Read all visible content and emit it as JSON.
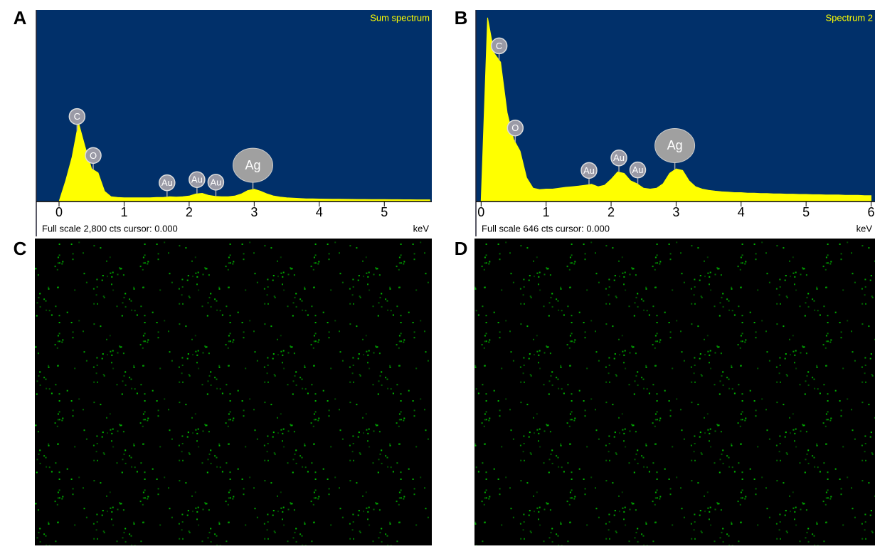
{
  "chart_data": [
    {
      "type": "area",
      "panel_label": "A",
      "subtitle": "Sum spectrum",
      "footer": "Full scale 2,800 cts cursor: 0.000",
      "x_label": "keV",
      "color": "#ffff00",
      "background_color": "#01306a",
      "xlim": [
        -0.35,
        5.73
      ],
      "ylim": [
        0,
        2800
      ],
      "xticks": [
        0,
        1,
        2,
        3,
        4,
        5
      ],
      "x": [
        0,
        0.1,
        0.2,
        0.3,
        0.4,
        0.5,
        0.6,
        0.7,
        0.8,
        0.9,
        1.0,
        1.1,
        1.2,
        1.3,
        1.4,
        1.5,
        1.6,
        1.7,
        1.8,
        1.9,
        2.0,
        2.1,
        2.2,
        2.3,
        2.4,
        2.5,
        2.6,
        2.7,
        2.8,
        2.9,
        3.0,
        3.1,
        3.2,
        3.3,
        3.4,
        3.5,
        3.6,
        3.7,
        3.8,
        3.9,
        4.0,
        4.1,
        4.2,
        4.3,
        4.4,
        4.5,
        4.6,
        4.7,
        4.8,
        4.9,
        5.0,
        5.1,
        5.2,
        5.3,
        5.4,
        5.5,
        5.6,
        5.7
      ],
      "values": [
        0,
        300,
        650,
        1150,
        800,
        480,
        420,
        150,
        70,
        60,
        55,
        55,
        55,
        55,
        55,
        60,
        60,
        70,
        65,
        70,
        80,
        110,
        120,
        90,
        75,
        70,
        70,
        80,
        110,
        160,
        180,
        150,
        110,
        80,
        65,
        55,
        50,
        45,
        40,
        38,
        36,
        35,
        34,
        33,
        32,
        31,
        30,
        30,
        29,
        28,
        28,
        27,
        27,
        26,
        26,
        25,
        25,
        25
      ],
      "annotations": [
        {
          "label": "C",
          "x": 0.277
        },
        {
          "label": "O",
          "x": 0.525
        },
        {
          "label": "Au",
          "x": 1.66
        },
        {
          "label": "Au",
          "x": 2.12
        },
        {
          "label": "Au",
          "x": 2.41
        },
        {
          "label": "Ag",
          "x": 2.98
        }
      ]
    },
    {
      "type": "area",
      "panel_label": "B",
      "subtitle": "Spectrum 2",
      "footer": "Full scale 646 cts cursor: 0.000",
      "x_label": "keV",
      "color": "#ffff00",
      "background_color": "#01306a",
      "xlim": [
        -0.08,
        6.06
      ],
      "ylim": [
        0,
        646
      ],
      "xticks": [
        0,
        1,
        2,
        3,
        4,
        5,
        6
      ],
      "x": [
        0,
        0.1,
        0.2,
        0.3,
        0.4,
        0.5,
        0.6,
        0.7,
        0.8,
        0.9,
        1.0,
        1.1,
        1.2,
        1.3,
        1.4,
        1.5,
        1.6,
        1.7,
        1.8,
        1.9,
        2.0,
        2.1,
        2.2,
        2.3,
        2.4,
        2.5,
        2.6,
        2.7,
        2.8,
        2.9,
        3.0,
        3.1,
        3.2,
        3.3,
        3.4,
        3.5,
        3.6,
        3.7,
        3.8,
        3.9,
        4.0,
        4.1,
        4.2,
        4.3,
        4.4,
        4.5,
        4.6,
        4.7,
        4.8,
        4.9,
        5.0,
        5.1,
        5.2,
        5.3,
        5.4,
        5.5,
        5.6,
        5.7,
        5.8,
        5.9,
        6.0
      ],
      "values": [
        0,
        620,
        500,
        470,
        300,
        210,
        170,
        80,
        45,
        40,
        42,
        42,
        45,
        48,
        50,
        52,
        55,
        58,
        50,
        55,
        75,
        100,
        95,
        70,
        60,
        45,
        42,
        45,
        60,
        95,
        110,
        105,
        70,
        50,
        42,
        38,
        35,
        33,
        32,
        30,
        30,
        28,
        28,
        27,
        27,
        26,
        26,
        25,
        25,
        24,
        24,
        23,
        23,
        22,
        22,
        22,
        21,
        21,
        21,
        20,
        20
      ],
      "annotations": [
        {
          "label": "C",
          "x": 0.277
        },
        {
          "label": "O",
          "x": 0.525
        },
        {
          "label": "Au",
          "x": 1.66
        },
        {
          "label": "Au",
          "x": 2.12
        },
        {
          "label": "Au",
          "x": 2.41
        },
        {
          "label": "Ag",
          "x": 2.98
        }
      ]
    }
  ],
  "images": [
    {
      "panel_label": "C"
    },
    {
      "panel_label": "D"
    }
  ]
}
